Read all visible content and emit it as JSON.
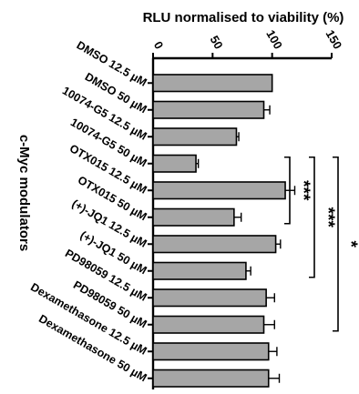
{
  "chart_data": {
    "type": "bar",
    "orientation": "horizontal",
    "xlabel": "RLU normalised to viability (%)",
    "ylabel": "c-Myc modulators",
    "xlim": [
      0,
      150
    ],
    "xticks": [
      "0",
      "50",
      "100",
      "150"
    ],
    "grid": false,
    "bar_color": "#a6a6a6",
    "categories": [
      "DMSO 12.5 µM",
      "DMSO 50 µM",
      "10074-G5 12.5 µM",
      "10074-G5 50 µM",
      "OTX015 12.5 µM",
      "OTX015 50 µM",
      "(+)-JQ1 12.5 µM",
      "(+)-JQ1 50 µM",
      "PD98059 12.5 µM",
      "PD98059 50 µM",
      "Dexamethasone 12.5 µM",
      "Dexamethasone 50 µM"
    ],
    "values": [
      100,
      93,
      70,
      36,
      111,
      68,
      103,
      78,
      95,
      93,
      97,
      97
    ],
    "errors": [
      0,
      5,
      2,
      2,
      8,
      6,
      4,
      4,
      7,
      9,
      7,
      9
    ],
    "significance": [
      {
        "from": 3,
        "to": 5,
        "label": "***"
      },
      {
        "from": 3,
        "to": 7,
        "label": "***"
      },
      {
        "from": 3,
        "to": 9,
        "label": "*"
      }
    ]
  }
}
